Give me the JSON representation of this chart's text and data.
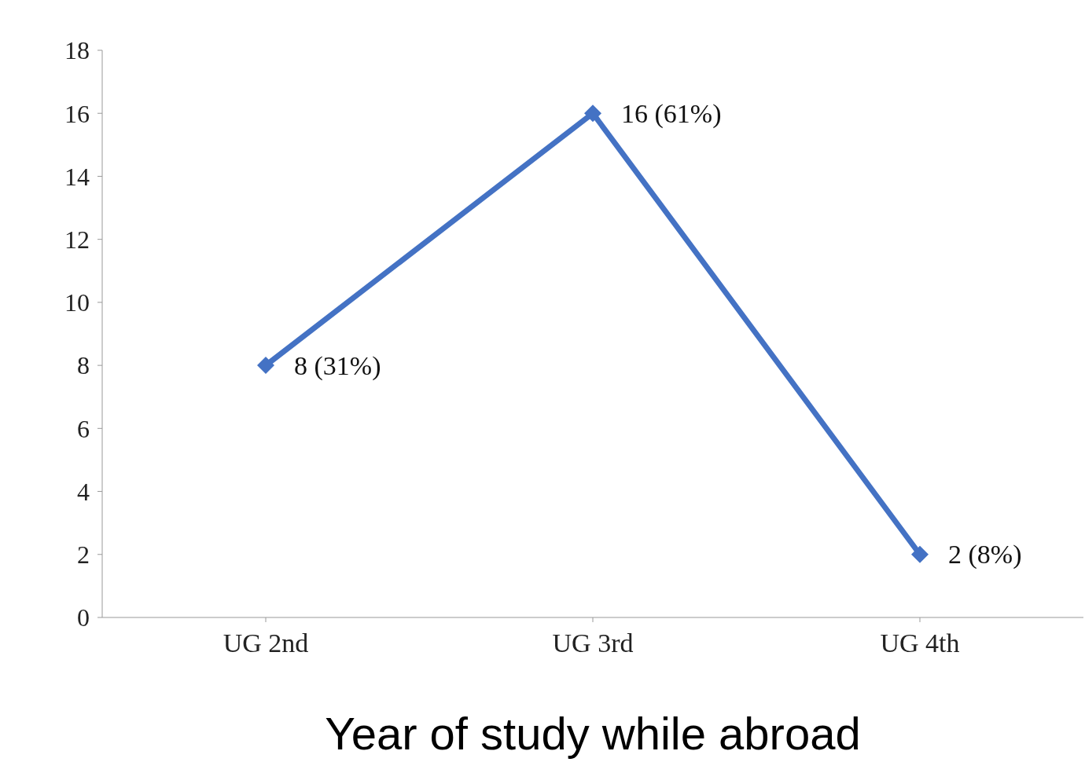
{
  "chart_data": {
    "type": "line",
    "xlabel": "Year of study while abroad",
    "categories": [
      "UG 2nd",
      "UG 3rd",
      "UG 4th"
    ],
    "values": [
      8,
      16,
      2
    ],
    "color": "#4472c4",
    "value_labels": [
      "8 (31%)",
      "16 (61%)",
      "2 (8%)"
    ],
    "ylim": [
      0,
      18
    ],
    "yticks": [
      0,
      2,
      4,
      6,
      8,
      10,
      12,
      14,
      16,
      18
    ],
    "marker": "diamond",
    "line_style": "solid"
  }
}
